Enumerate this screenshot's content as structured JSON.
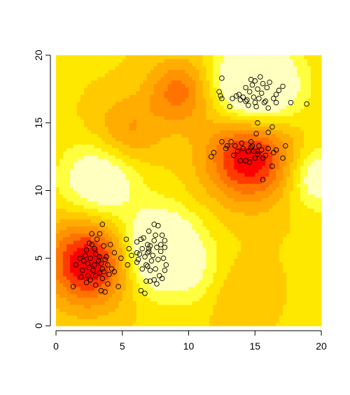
{
  "chart_data": {
    "type": "heatmap",
    "title": "",
    "xlabel": "",
    "ylabel": "",
    "xlim": [
      0,
      20
    ],
    "ylim": [
      0,
      20
    ],
    "x_ticks": [
      0,
      5,
      10,
      15,
      20
    ],
    "y_ticks": [
      0,
      5,
      10,
      15,
      20
    ],
    "grid": false,
    "palette": [
      "#FF0000",
      "#FF3A00",
      "#FF7300",
      "#FF9300",
      "#FFAD00",
      "#FFCB00",
      "#FFE800",
      "#FFFF40",
      "#FFFFBF"
    ],
    "surface_features": [
      {
        "name": "hot",
        "x": 15.1,
        "y": 17.7
      },
      {
        "name": "hot",
        "x": 7.8,
        "y": 5.6
      },
      {
        "name": "hot",
        "x": 3.3,
        "y": 10.8
      },
      {
        "name": "hot",
        "x": 19.8,
        "y": 11.0
      },
      {
        "name": "hot",
        "x": 11.8,
        "y": 3.3
      },
      {
        "name": "cool",
        "x": 14.6,
        "y": 12.5
      },
      {
        "name": "cool",
        "x": 2.5,
        "y": 4.7
      },
      {
        "name": "cool",
        "x": 9.3,
        "y": 17.3
      },
      {
        "name": "cool",
        "x": 13.0,
        "y": 2.8
      },
      {
        "name": "cool",
        "x": 5.3,
        "y": 14.3
      }
    ],
    "points": [
      [
        15.0,
        18.1
      ],
      [
        14.8,
        17.8
      ],
      [
        15.2,
        17.5
      ],
      [
        14.6,
        17.3
      ],
      [
        15.5,
        17.2
      ],
      [
        14.9,
        16.9
      ],
      [
        15.3,
        16.8
      ],
      [
        14.4,
        16.7
      ],
      [
        15.8,
        16.6
      ],
      [
        14.1,
        16.9
      ],
      [
        15.0,
        16.5
      ],
      [
        15.6,
        17.9
      ],
      [
        14.7,
        18.2
      ],
      [
        15.9,
        17.6
      ],
      [
        13.9,
        16.7
      ],
      [
        16.4,
        16.8
      ],
      [
        15.1,
        16.2
      ],
      [
        14.3,
        17.6
      ],
      [
        16.0,
        16.1
      ],
      [
        15.4,
        18.4
      ],
      [
        13.6,
        17.0
      ],
      [
        16.8,
        17.4
      ],
      [
        14.5,
        16.3
      ],
      [
        15.7,
        16.5
      ],
      [
        12.4,
        17.0
      ],
      [
        12.5,
        18.3
      ],
      [
        12.3,
        17.3
      ],
      [
        12.5,
        16.8
      ],
      [
        13.3,
        16.8
      ],
      [
        13.8,
        17.1
      ],
      [
        16.6,
        17.1
      ],
      [
        17.1,
        17.7
      ],
      [
        17.7,
        16.5
      ],
      [
        18.9,
        16.4
      ],
      [
        16.6,
        16.5
      ],
      [
        15.2,
        15.0
      ],
      [
        14.3,
        16.6
      ],
      [
        16.1,
        18.0
      ],
      [
        14.8,
        13.3
      ],
      [
        14.5,
        12.9
      ],
      [
        15.2,
        12.7
      ],
      [
        14.1,
        13.1
      ],
      [
        15.0,
        12.4
      ],
      [
        14.3,
        12.2
      ],
      [
        15.5,
        13.0
      ],
      [
        14.7,
        13.6
      ],
      [
        13.7,
        12.9
      ],
      [
        15.8,
        12.6
      ],
      [
        14.0,
        13.5
      ],
      [
        15.3,
        13.3
      ],
      [
        13.5,
        13.3
      ],
      [
        16.0,
        13.1
      ],
      [
        14.9,
        12.9
      ],
      [
        13.9,
        12.2
      ],
      [
        15.6,
        12.4
      ],
      [
        16.4,
        12.8
      ],
      [
        13.4,
        12.6
      ],
      [
        14.6,
        12.1
      ],
      [
        12.9,
        13.3
      ],
      [
        13.2,
        13.6
      ],
      [
        12.5,
        13.6
      ],
      [
        12.8,
        13.1
      ],
      [
        11.9,
        12.8
      ],
      [
        11.7,
        12.5
      ],
      [
        16.6,
        13.0
      ],
      [
        17.3,
        13.3
      ],
      [
        17.1,
        12.4
      ],
      [
        16.3,
        11.8
      ],
      [
        15.6,
        10.8
      ],
      [
        15.1,
        14.2
      ],
      [
        16.0,
        14.3
      ],
      [
        16.3,
        14.7
      ],
      [
        14.7,
        13.2
      ],
      [
        15.2,
        12.9
      ],
      [
        13.1,
        16.2
      ],
      [
        3.2,
        4.8
      ],
      [
        2.9,
        4.5
      ],
      [
        3.5,
        4.2
      ],
      [
        2.6,
        5.0
      ],
      [
        3.7,
        4.9
      ],
      [
        3.0,
        5.3
      ],
      [
        2.4,
        4.6
      ],
      [
        3.3,
        3.9
      ],
      [
        2.8,
        4.1
      ],
      [
        3.9,
        4.5
      ],
      [
        2.2,
        5.2
      ],
      [
        3.6,
        5.9
      ],
      [
        2.7,
        6.0
      ],
      [
        3.1,
        6.4
      ],
      [
        3.5,
        3.5
      ],
      [
        2.4,
        3.7
      ],
      [
        3.9,
        3.1
      ],
      [
        4.2,
        4.2
      ],
      [
        2.0,
        4.1
      ],
      [
        1.8,
        5.0
      ],
      [
        1.5,
        4.5
      ],
      [
        1.3,
        2.9
      ],
      [
        2.3,
        3.2
      ],
      [
        3.0,
        3.0
      ],
      [
        3.4,
        2.6
      ],
      [
        3.7,
        2.5
      ],
      [
        4.7,
        2.9
      ],
      [
        4.4,
        4.0
      ],
      [
        4.4,
        5.4
      ],
      [
        4.1,
        6.0
      ],
      [
        3.3,
        6.8
      ],
      [
        2.7,
        6.8
      ],
      [
        2.5,
        6.1
      ],
      [
        3.5,
        7.5
      ],
      [
        1.9,
        3.6
      ],
      [
        3.0,
        3.7
      ],
      [
        2.5,
        4.3
      ],
      [
        3.4,
        4.6
      ],
      [
        2.9,
        5.7
      ],
      [
        2.1,
        4.8
      ],
      [
        3.6,
        4.0
      ],
      [
        2.3,
        5.6
      ],
      [
        3.8,
        5.1
      ],
      [
        3.3,
        5.1
      ],
      [
        4.9,
        5.0
      ],
      [
        4.0,
        3.8
      ],
      [
        2.6,
        3.4
      ],
      [
        7.0,
        5.5
      ],
      [
        7.3,
        5.2
      ],
      [
        6.7,
        5.1
      ],
      [
        7.6,
        5.8
      ],
      [
        6.9,
        6.0
      ],
      [
        7.4,
        6.3
      ],
      [
        6.5,
        5.7
      ],
      [
        7.9,
        5.5
      ],
      [
        6.6,
        6.5
      ],
      [
        7.2,
        4.8
      ],
      [
        6.8,
        4.5
      ],
      [
        7.7,
        4.9
      ],
      [
        6.3,
        5.3
      ],
      [
        8.1,
        5.0
      ],
      [
        6.9,
        4.4
      ],
      [
        7.5,
        4.2
      ],
      [
        6.2,
        4.9
      ],
      [
        8.3,
        4.5
      ],
      [
        7.1,
        4.1
      ],
      [
        6.5,
        4.2
      ],
      [
        7.8,
        3.7
      ],
      [
        7.4,
        3.4
      ],
      [
        6.8,
        3.3
      ],
      [
        7.6,
        3.1
      ],
      [
        8.0,
        3.5
      ],
      [
        7.1,
        3.3
      ],
      [
        8.2,
        4.1
      ],
      [
        6.1,
        4.7
      ],
      [
        5.7,
        5.2
      ],
      [
        6.1,
        6.2
      ],
      [
        5.3,
        6.4
      ],
      [
        5.5,
        5.7
      ],
      [
        6.4,
        6.4
      ],
      [
        7.0,
        7.0
      ],
      [
        7.7,
        7.4
      ],
      [
        7.4,
        7.5
      ],
      [
        8.0,
        6.7
      ],
      [
        8.2,
        6.3
      ],
      [
        7.5,
        6.7
      ],
      [
        6.7,
        2.4
      ],
      [
        6.4,
        2.6
      ],
      [
        5.4,
        4.5
      ],
      [
        7.0,
        5.7
      ],
      [
        6.9,
        5.4
      ],
      [
        7.1,
        5.9
      ],
      [
        6.1,
        5.4
      ],
      [
        7.9,
        6.0
      ],
      [
        8.2,
        5.8
      ]
    ]
  }
}
